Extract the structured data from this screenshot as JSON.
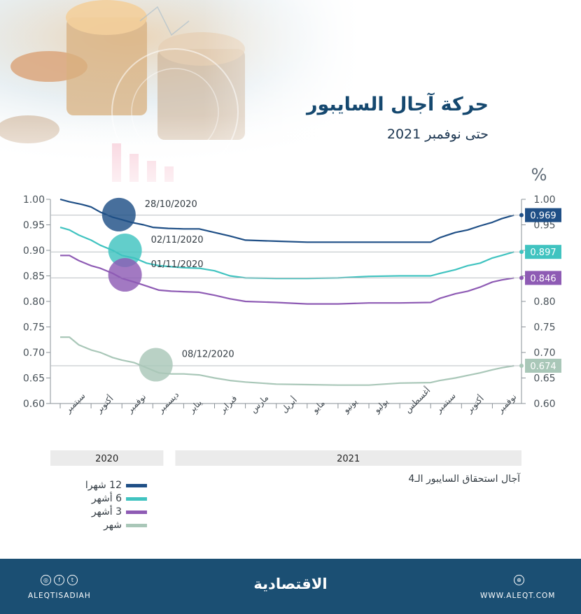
{
  "title": "حركة آجال السايبور",
  "subtitle": "حتى نوفمبر 2021",
  "unit": "%",
  "footer": {
    "handle": "ALEQTISADIAH",
    "logo": "الاقتصادية",
    "website": "WWW.ALEQT.COM"
  },
  "colors": {
    "m12": "#1f4f86",
    "m6": "#40c3c0",
    "m3": "#8e5bb4",
    "m1": "#a9c7b8",
    "footer": "#1b4f73",
    "title": "#15486f"
  },
  "chart_data": {
    "type": "line",
    "xlabel": "آجال استحقاق السايبور الـ4",
    "ylabel": "%",
    "ylim": [
      0.6,
      1.0
    ],
    "yticks": [
      "1.00",
      "0.95",
      "0.90",
      "0.85",
      "0.80",
      "0.75",
      "0.70",
      "0.65",
      "0.60"
    ],
    "months": [
      "سبتمبر",
      "أكتوبر",
      "نوفمبر",
      "ديسمبر",
      "يناير",
      "فبراير",
      "مارس",
      "أبريل",
      "مايو",
      "يونيو",
      "يوليو",
      "أغسطس",
      "سبتمبر",
      "أكتوبر",
      "نوفمبر"
    ],
    "year_groups": [
      {
        "label": "2020",
        "months": 4
      },
      {
        "label": "2021",
        "months": 11
      }
    ],
    "series": [
      {
        "name": "12 شهرا",
        "color": "#1f4f86",
        "last_value": "0.969",
        "points": [
          [
            0,
            1.0
          ],
          [
            0.3,
            0.995
          ],
          [
            0.7,
            0.99
          ],
          [
            1.0,
            0.985
          ],
          [
            1.3,
            0.975
          ],
          [
            1.7,
            0.965
          ],
          [
            2.0,
            0.96
          ],
          [
            2.3,
            0.955
          ],
          [
            2.7,
            0.95
          ],
          [
            3.0,
            0.945
          ],
          [
            3.5,
            0.943
          ],
          [
            4.0,
            0.942
          ],
          [
            4.5,
            0.942
          ],
          [
            5.0,
            0.935
          ],
          [
            5.5,
            0.928
          ],
          [
            6.0,
            0.92
          ],
          [
            7.0,
            0.918
          ],
          [
            8.0,
            0.916
          ],
          [
            9.0,
            0.916
          ],
          [
            10.0,
            0.916
          ],
          [
            11.0,
            0.916
          ],
          [
            12.0,
            0.916
          ],
          [
            12.3,
            0.925
          ],
          [
            12.8,
            0.935
          ],
          [
            13.2,
            0.94
          ],
          [
            13.6,
            0.948
          ],
          [
            14.0,
            0.955
          ],
          [
            14.3,
            0.962
          ],
          [
            14.7,
            0.969
          ]
        ]
      },
      {
        "name": "6 أشهر",
        "color": "#40c3c0",
        "last_value": "0.897",
        "points": [
          [
            0,
            0.945
          ],
          [
            0.3,
            0.94
          ],
          [
            0.6,
            0.93
          ],
          [
            1.0,
            0.92
          ],
          [
            1.3,
            0.91
          ],
          [
            1.7,
            0.9
          ],
          [
            2.0,
            0.89
          ],
          [
            2.4,
            0.885
          ],
          [
            2.8,
            0.875
          ],
          [
            3.2,
            0.87
          ],
          [
            3.6,
            0.868
          ],
          [
            4.0,
            0.866
          ],
          [
            4.5,
            0.865
          ],
          [
            5.0,
            0.86
          ],
          [
            5.5,
            0.85
          ],
          [
            6.0,
            0.846
          ],
          [
            7.0,
            0.845
          ],
          [
            8.0,
            0.845
          ],
          [
            9.0,
            0.846
          ],
          [
            10.0,
            0.849
          ],
          [
            11.0,
            0.85
          ],
          [
            12.0,
            0.85
          ],
          [
            12.3,
            0.855
          ],
          [
            12.8,
            0.862
          ],
          [
            13.2,
            0.87
          ],
          [
            13.6,
            0.875
          ],
          [
            14.0,
            0.885
          ],
          [
            14.3,
            0.89
          ],
          [
            14.7,
            0.897
          ]
        ]
      },
      {
        "name": "3 أشهر",
        "color": "#8e5bb4",
        "last_value": "0.846",
        "points": [
          [
            0,
            0.89
          ],
          [
            0.3,
            0.89
          ],
          [
            0.6,
            0.88
          ],
          [
            1.0,
            0.87
          ],
          [
            1.3,
            0.865
          ],
          [
            1.7,
            0.855
          ],
          [
            2.0,
            0.845
          ],
          [
            2.4,
            0.838
          ],
          [
            2.8,
            0.83
          ],
          [
            3.2,
            0.822
          ],
          [
            3.6,
            0.82
          ],
          [
            4.0,
            0.819
          ],
          [
            4.5,
            0.818
          ],
          [
            5.0,
            0.812
          ],
          [
            5.5,
            0.805
          ],
          [
            6.0,
            0.8
          ],
          [
            7.0,
            0.798
          ],
          [
            8.0,
            0.795
          ],
          [
            9.0,
            0.795
          ],
          [
            10.0,
            0.797
          ],
          [
            11.0,
            0.797
          ],
          [
            12.0,
            0.798
          ],
          [
            12.3,
            0.806
          ],
          [
            12.8,
            0.815
          ],
          [
            13.2,
            0.82
          ],
          [
            13.6,
            0.828
          ],
          [
            14.0,
            0.838
          ],
          [
            14.3,
            0.842
          ],
          [
            14.7,
            0.846
          ]
        ]
      },
      {
        "name": "شهر",
        "color": "#a9c7b8",
        "last_value": "0.674",
        "points": [
          [
            0,
            0.73
          ],
          [
            0.3,
            0.73
          ],
          [
            0.6,
            0.715
          ],
          [
            1.0,
            0.705
          ],
          [
            1.3,
            0.7
          ],
          [
            1.7,
            0.69
          ],
          [
            2.0,
            0.685
          ],
          [
            2.4,
            0.68
          ],
          [
            2.8,
            0.67
          ],
          [
            3.2,
            0.66
          ],
          [
            3.6,
            0.658
          ],
          [
            4.0,
            0.658
          ],
          [
            4.5,
            0.656
          ],
          [
            5.0,
            0.65
          ],
          [
            5.5,
            0.645
          ],
          [
            6.0,
            0.642
          ],
          [
            7.0,
            0.638
          ],
          [
            8.0,
            0.637
          ],
          [
            9.0,
            0.636
          ],
          [
            10.0,
            0.636
          ],
          [
            11.0,
            0.64
          ],
          [
            12.0,
            0.641
          ],
          [
            12.3,
            0.645
          ],
          [
            12.8,
            0.65
          ],
          [
            13.2,
            0.655
          ],
          [
            13.6,
            0.66
          ],
          [
            14.0,
            0.666
          ],
          [
            14.3,
            0.67
          ],
          [
            14.7,
            0.674
          ]
        ]
      }
    ],
    "annotations": [
      {
        "label": "28/10/2020",
        "x": 1.9,
        "y": 0.97,
        "color": "#1f4f86"
      },
      {
        "label": "02/11/2020",
        "x": 2.1,
        "y": 0.9,
        "color": "#40c3c0"
      },
      {
        "label": "01/11/2020",
        "x": 2.1,
        "y": 0.852,
        "color": "#8e5bb4"
      },
      {
        "label": "08/12/2020",
        "x": 3.1,
        "y": 0.676,
        "color": "#a9c7b8"
      }
    ]
  }
}
